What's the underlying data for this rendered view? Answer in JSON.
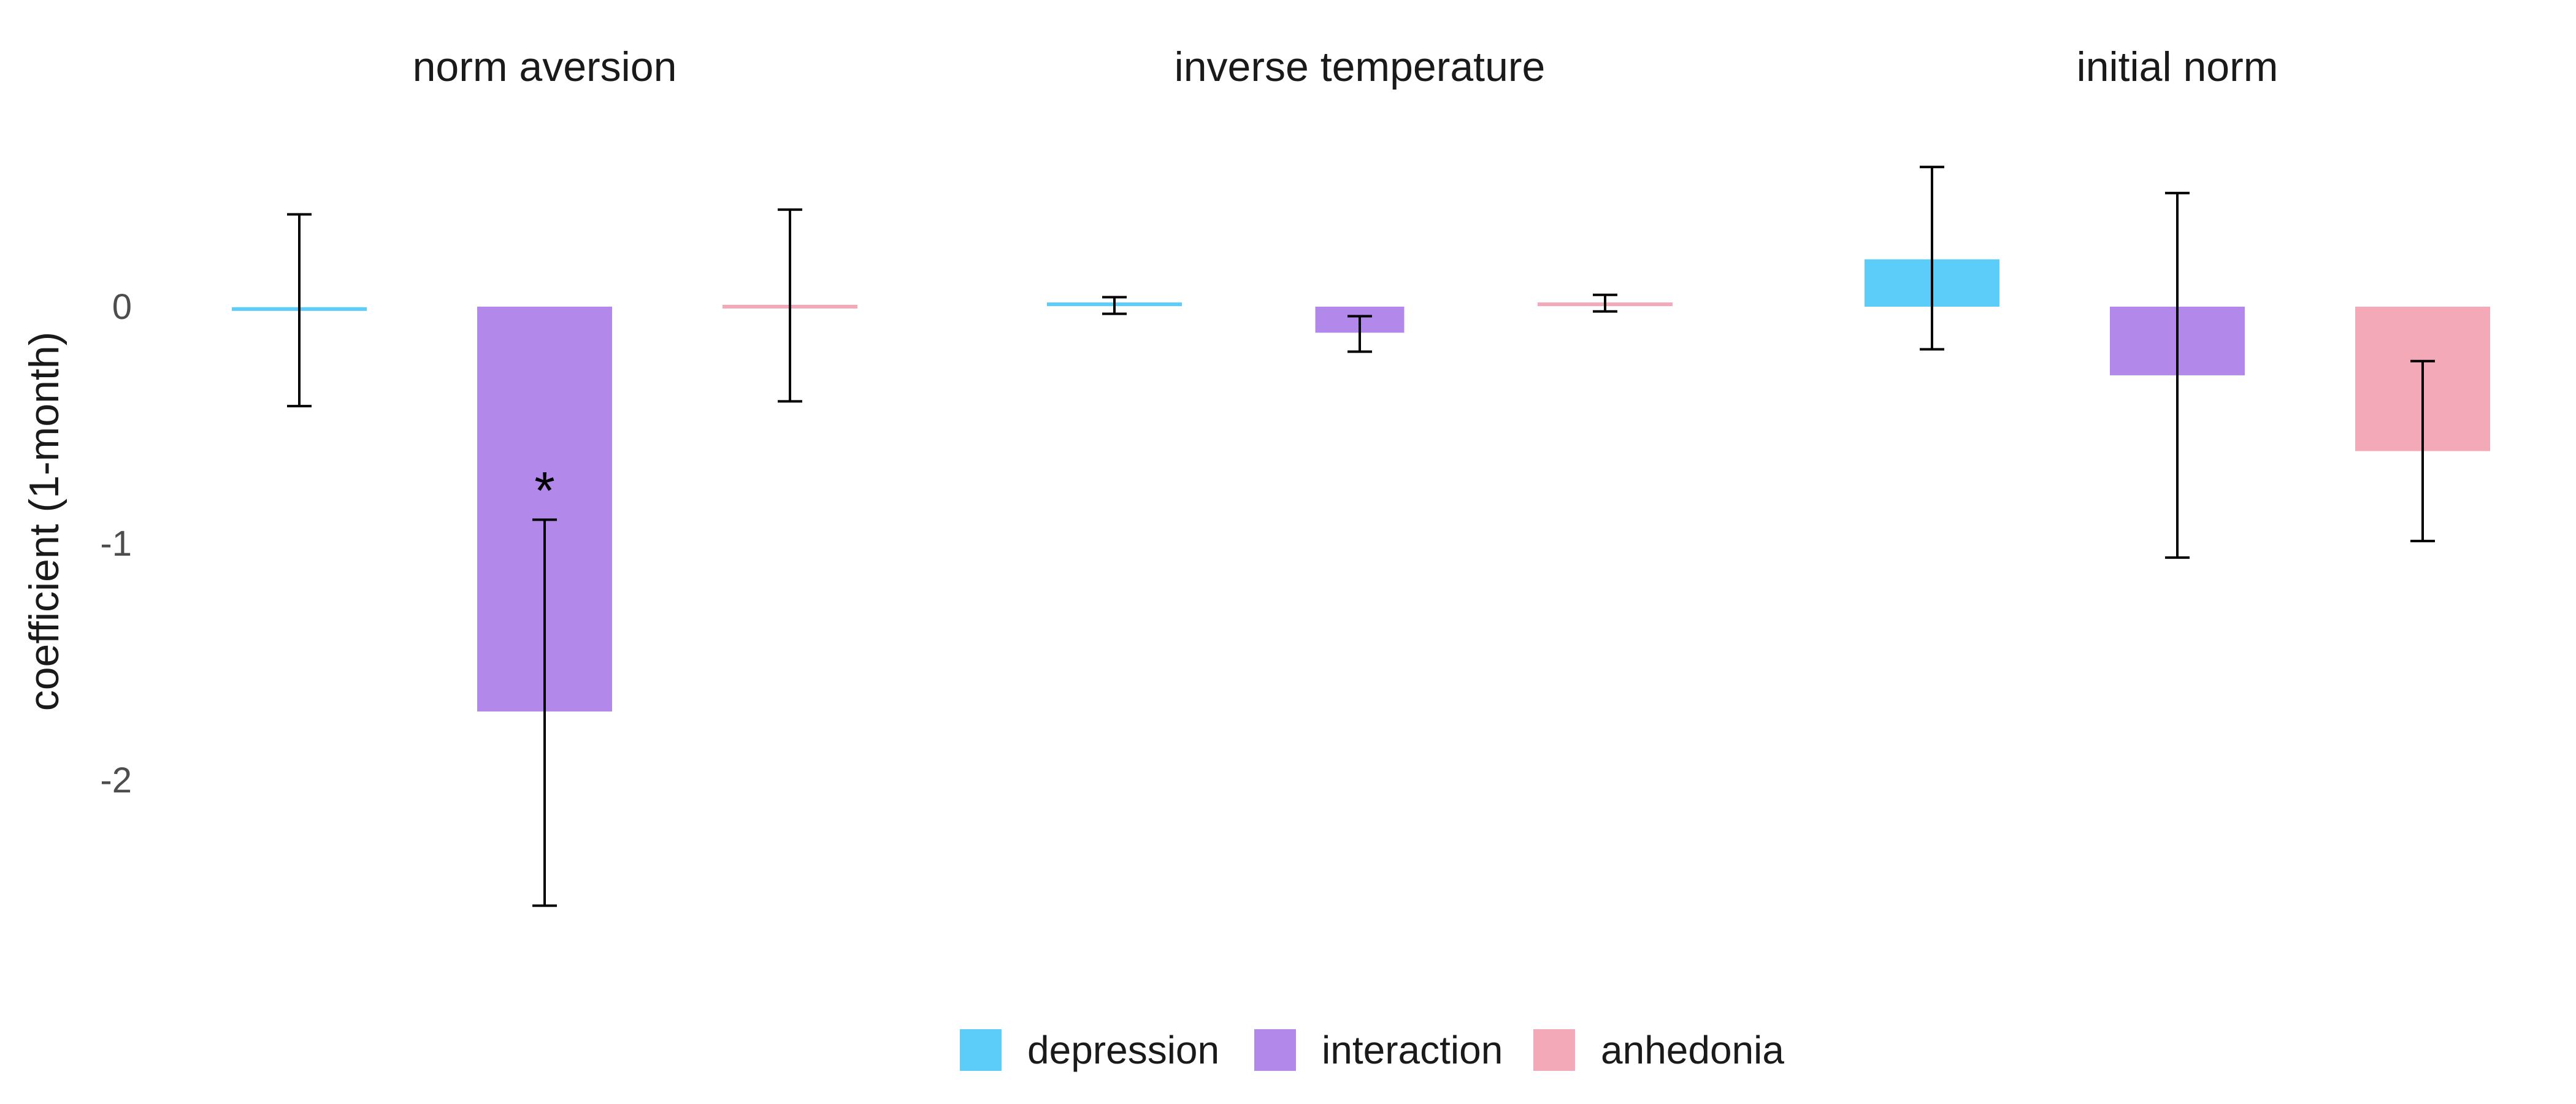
{
  "chart_data": {
    "type": "bar",
    "ylabel": "coefficient (1-month)",
    "ylim": [
      -2.75,
      0.7
    ],
    "yticks": [
      0,
      -1,
      -2
    ],
    "grid": false,
    "legend_position": "bottom",
    "series_names": [
      "depression",
      "interaction",
      "anhedonia"
    ],
    "colors": {
      "depression": "#5bcdf8",
      "interaction": "#b388eb",
      "anhedonia": "#f4a9b8",
      "errorbar": "#000000"
    },
    "panels": [
      {
        "title": "norm aversion",
        "bars": [
          {
            "series": "depression",
            "value": -0.01,
            "lower": -0.42,
            "upper": 0.39,
            "significant": false
          },
          {
            "series": "interaction",
            "value": -1.71,
            "lower": -2.53,
            "upper": -0.9,
            "significant": true,
            "annotation": "*"
          },
          {
            "series": "anhedonia",
            "value": 0.0,
            "lower": -0.4,
            "upper": 0.41,
            "significant": false
          }
        ]
      },
      {
        "title": "inverse temperature",
        "bars": [
          {
            "series": "depression",
            "value": 0.01,
            "lower": -0.03,
            "upper": 0.04,
            "significant": false
          },
          {
            "series": "interaction",
            "value": -0.11,
            "lower": -0.19,
            "upper": -0.04,
            "significant": false
          },
          {
            "series": "anhedonia",
            "value": 0.01,
            "lower": -0.02,
            "upper": 0.05,
            "significant": false
          }
        ]
      },
      {
        "title": "initial norm",
        "bars": [
          {
            "series": "depression",
            "value": 0.2,
            "lower": -0.18,
            "upper": 0.59,
            "significant": false
          },
          {
            "series": "interaction",
            "value": -0.29,
            "lower": -1.06,
            "upper": 0.48,
            "significant": false
          },
          {
            "series": "anhedonia",
            "value": -0.61,
            "lower": -0.99,
            "upper": -0.23,
            "significant": false
          }
        ]
      }
    ]
  }
}
